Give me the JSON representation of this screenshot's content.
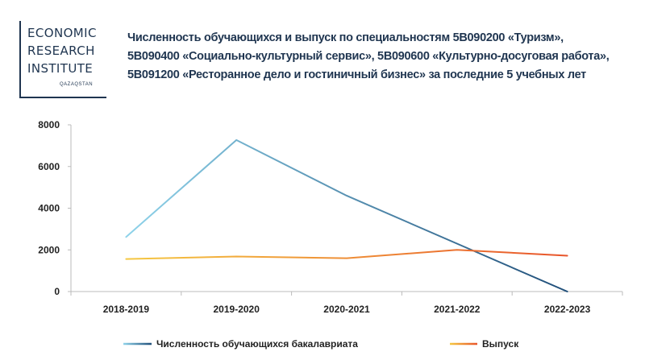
{
  "logo": {
    "line1": "ECONOMIC",
    "line2": "RESEARCH",
    "line3": "INSTITUTE",
    "sub": "QAZAQSTAN"
  },
  "title_lines": [
    "Численность обучающихся и выпуск по специальностям 5В090200 «Туризм»,",
    "5В090400 «Социально-культурный сервис», 5В090600 «Культурно-досуговая работа»,",
    "5В091200 «Ресторанное дело и гостиничный бизнес» за последние 5 учебных лет"
  ],
  "chart_data": {
    "type": "line",
    "title": "",
    "xlabel": "",
    "ylabel": "",
    "categories": [
      "2018-2019",
      "2019-2020",
      "2020-2021",
      "2021-2022",
      "2022-2023"
    ],
    "ylim": [
      0,
      8000
    ],
    "yticks": [
      0,
      2000,
      4000,
      6000,
      8000
    ],
    "grid": false,
    "legend_position": "bottom",
    "series": [
      {
        "name": "Численность обучающихся бакалавриата",
        "values": [
          2620,
          7270,
          4600,
          2300,
          0
        ],
        "color_start": "#8fd3ea",
        "color_end": "#1f4e79"
      },
      {
        "name": "Выпуск",
        "values": [
          1560,
          1680,
          1600,
          2000,
          1720
        ],
        "color_start": "#f5c842",
        "color_end": "#e8542a"
      }
    ]
  }
}
